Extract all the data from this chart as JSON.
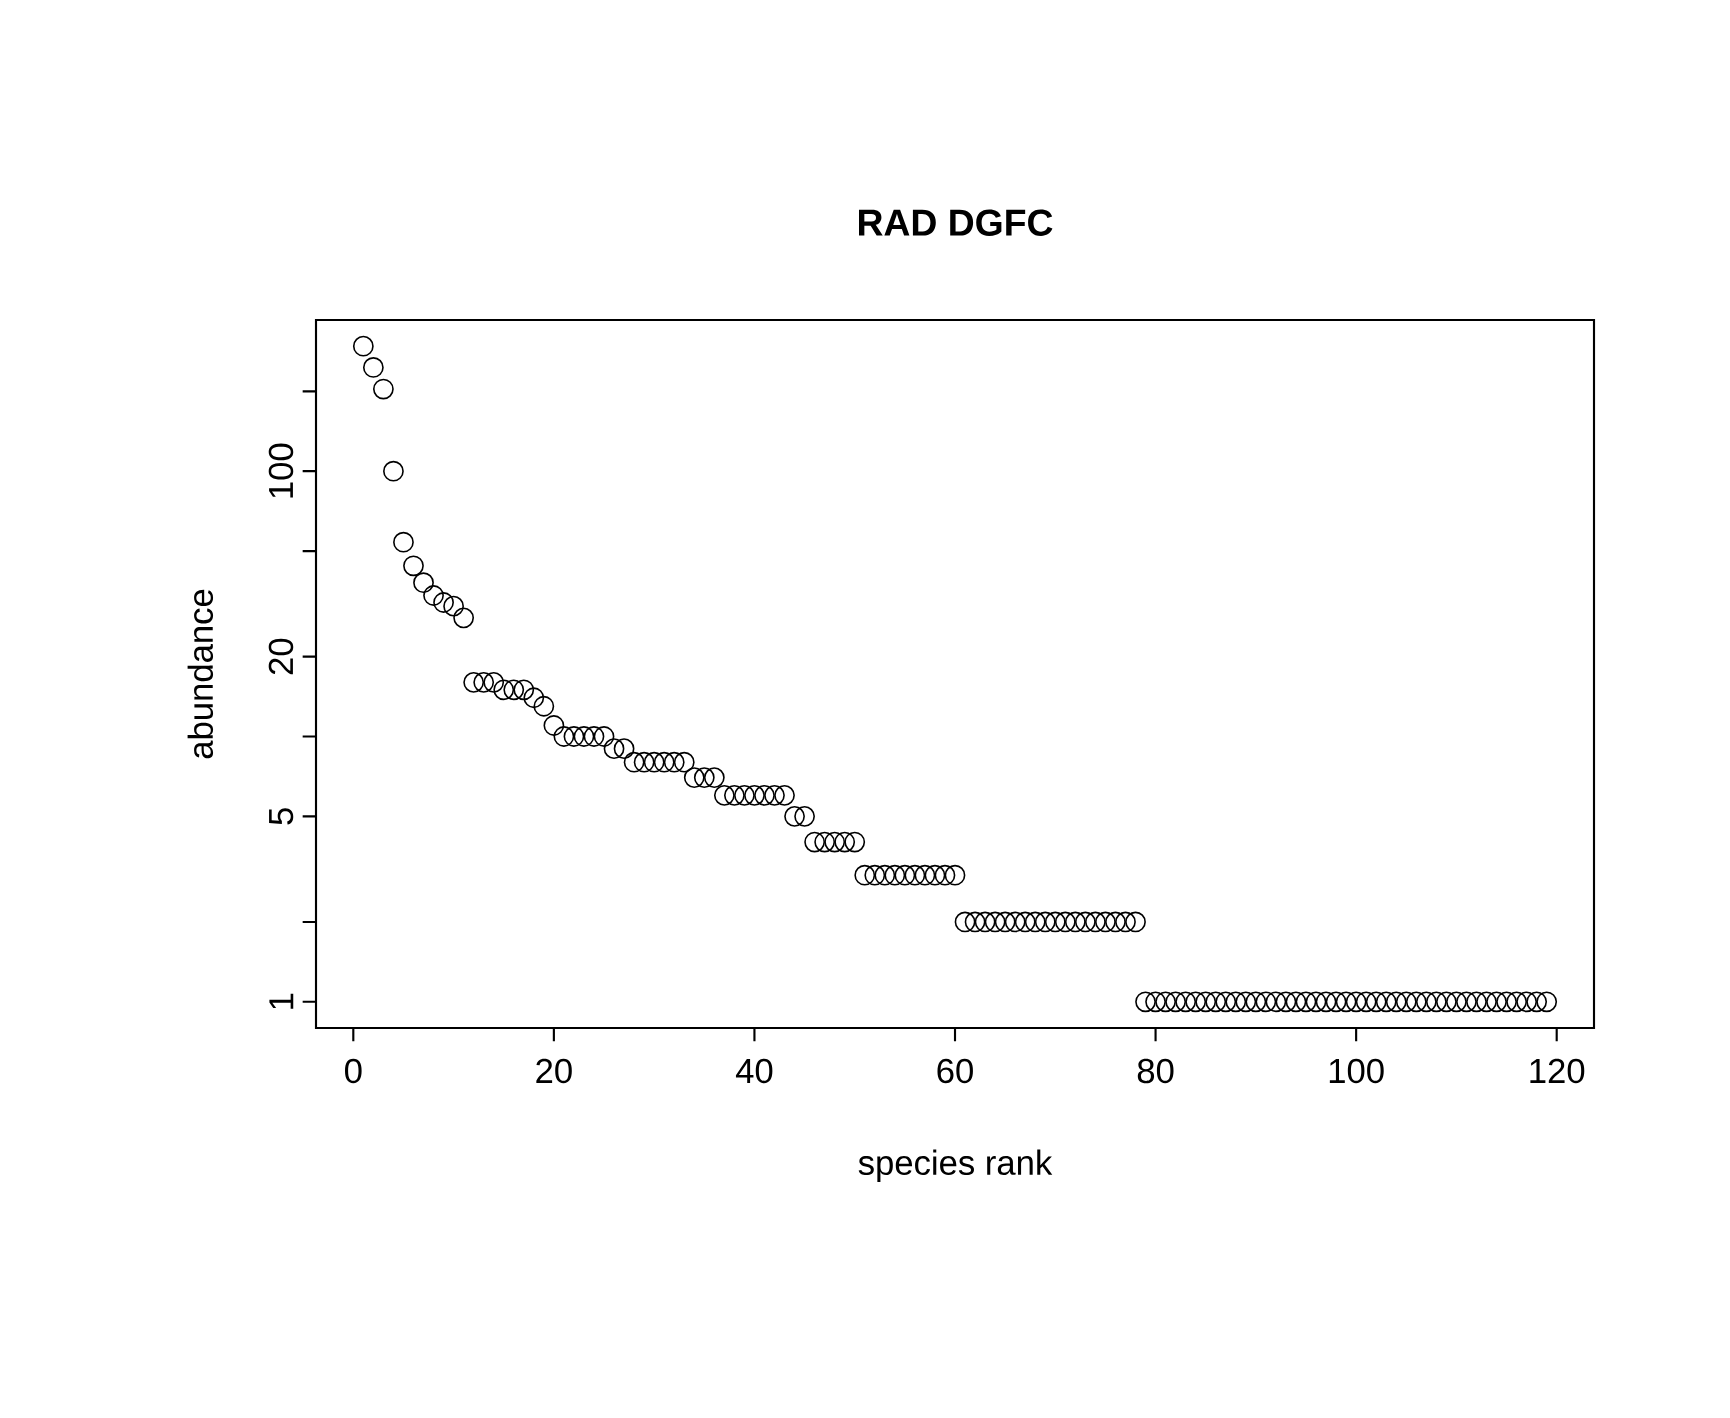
{
  "chart_data": {
    "type": "scatter",
    "title": "RAD DGFC",
    "xlabel": "species rank",
    "ylabel": "abundance",
    "log": "y",
    "marker": "circle",
    "xlim": [
      -3.72,
      123.72
    ],
    "ylim": [
      0.797,
      371.5
    ],
    "xticks": [
      0,
      20,
      40,
      60,
      80,
      100,
      120
    ],
    "yticks": [
      1,
      {
        "value": 2,
        "label": null
      },
      5,
      {
        "value": 10,
        "label": null
      },
      20,
      {
        "value": 50,
        "label": null
      },
      100,
      {
        "value": 200,
        "label": null
      }
    ],
    "series": [
      {
        "color": "#000000",
        "x": [
          1,
          2,
          3,
          4,
          5,
          6,
          7,
          8,
          9,
          10,
          11,
          12,
          13,
          14,
          15,
          16,
          17,
          18,
          19,
          20,
          21,
          22,
          23,
          24,
          25,
          26,
          27,
          28,
          29,
          30,
          31,
          32,
          33,
          34,
          35,
          36,
          37,
          38,
          39,
          40,
          41,
          42,
          43,
          44,
          45,
          46,
          47,
          48,
          49,
          50,
          51,
          52,
          53,
          54,
          55,
          56,
          57,
          58,
          59,
          60,
          61,
          62,
          63,
          64,
          65,
          66,
          67,
          68,
          69,
          70,
          71,
          72,
          73,
          74,
          75,
          76,
          77,
          78,
          79,
          80,
          81,
          82,
          83,
          84,
          85,
          86,
          87,
          88,
          89,
          90,
          91,
          92,
          93,
          94,
          95,
          96,
          97,
          98,
          99,
          100,
          101,
          102,
          103,
          104,
          105,
          106,
          107,
          108,
          109,
          110,
          111,
          112,
          113,
          114,
          115,
          116,
          117,
          118,
          119
        ],
        "values": [
          296,
          246,
          204,
          100,
          54,
          44,
          38,
          34,
          32,
          31,
          28,
          16,
          16,
          16,
          15,
          15,
          15,
          14,
          13,
          11,
          10,
          10,
          10,
          10,
          10,
          9,
          9,
          8,
          8,
          8,
          8,
          8,
          8,
          7,
          7,
          7,
          6,
          6,
          6,
          6,
          6,
          6,
          6,
          5,
          5,
          4,
          4,
          4,
          4,
          4,
          3,
          3,
          3,
          3,
          3,
          3,
          3,
          3,
          3,
          3,
          2,
          2,
          2,
          2,
          2,
          2,
          2,
          2,
          2,
          2,
          2,
          2,
          2,
          2,
          2,
          2,
          2,
          2,
          1,
          1,
          1,
          1,
          1,
          1,
          1,
          1,
          1,
          1,
          1,
          1,
          1,
          1,
          1,
          1,
          1,
          1,
          1,
          1,
          1,
          1,
          1,
          1,
          1,
          1,
          1,
          1,
          1,
          1,
          1,
          1,
          1,
          1,
          1,
          1,
          1,
          1,
          1,
          1,
          1
        ]
      }
    ]
  }
}
